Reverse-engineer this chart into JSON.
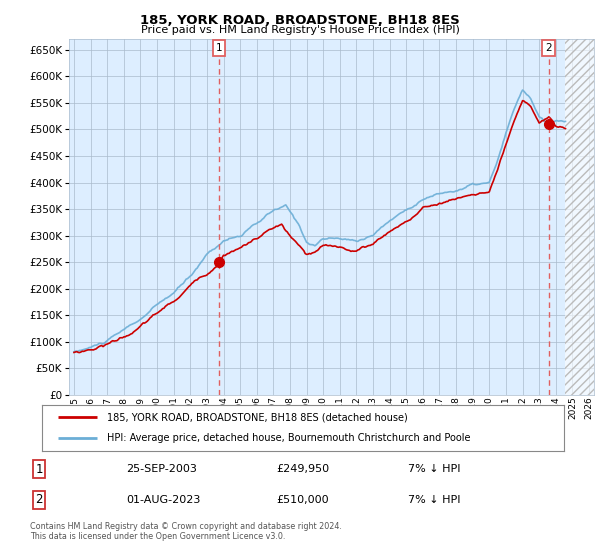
{
  "title": "185, YORK ROAD, BROADSTONE, BH18 8ES",
  "subtitle": "Price paid vs. HM Land Registry's House Price Index (HPI)",
  "ylim": [
    0,
    670000
  ],
  "yticks": [
    0,
    50000,
    100000,
    150000,
    200000,
    250000,
    300000,
    350000,
    400000,
    450000,
    500000,
    550000,
    600000,
    650000
  ],
  "xlim_start": 1994.7,
  "xlim_end": 2026.3,
  "hatch_start": 2024.58,
  "xticks": [
    1995,
    1996,
    1997,
    1998,
    1999,
    2000,
    2001,
    2002,
    2003,
    2004,
    2005,
    2006,
    2007,
    2008,
    2009,
    2010,
    2011,
    2012,
    2013,
    2014,
    2015,
    2016,
    2017,
    2018,
    2019,
    2020,
    2021,
    2022,
    2023,
    2024,
    2025,
    2026
  ],
  "transaction1_x": 2003.73,
  "transaction1_y": 249950,
  "transaction1_label": "1",
  "transaction2_x": 2023.58,
  "transaction2_y": 510000,
  "transaction2_label": "2",
  "hpi_color": "#6baed6",
  "price_color": "#cc0000",
  "marker_color": "#cc0000",
  "vline_color": "#e06060",
  "plot_bg_color": "#ddeeff",
  "background_color": "#ffffff",
  "grid_color": "#aabbcc",
  "hatch_color": "#cccccc",
  "legend_entry1": "185, YORK ROAD, BROADSTONE, BH18 8ES (detached house)",
  "legend_entry2": "HPI: Average price, detached house, Bournemouth Christchurch and Poole",
  "table_row1_num": "1",
  "table_row1_date": "25-SEP-2003",
  "table_row1_price": "£249,950",
  "table_row1_hpi": "7% ↓ HPI",
  "table_row2_num": "2",
  "table_row2_date": "01-AUG-2023",
  "table_row2_price": "£510,000",
  "table_row2_hpi": "7% ↓ HPI",
  "footer": "Contains HM Land Registry data © Crown copyright and database right 2024.\nThis data is licensed under the Open Government Licence v3.0."
}
